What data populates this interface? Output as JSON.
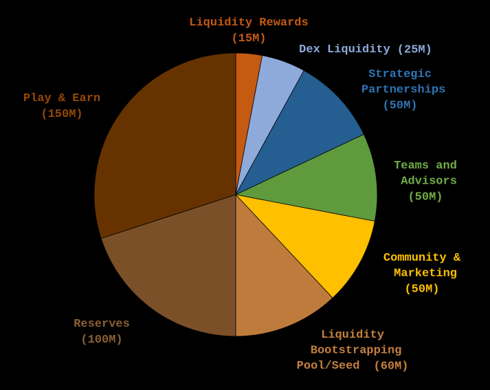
{
  "chart_data": {
    "type": "pie",
    "categories": [
      "Liquidity Rewards",
      "Dex Liquidity",
      "Strategic Partnerships",
      "Teams and Advisors",
      "Community & Marketing",
      "Liquidity Bootstrapping Pool/Seed",
      "Reserves",
      "Play & Earn"
    ],
    "values": [
      15,
      25,
      50,
      50,
      50,
      60,
      100,
      150
    ],
    "value_labels": [
      "(15M)",
      "(25M)",
      "(50M)",
      "(50M)",
      "(50M)",
      "(60M)",
      "(100M)",
      "(150M)"
    ],
    "colors": [
      "#c55a11",
      "#8eaadb",
      "#255e91",
      "#5f9a3c",
      "#ffc000",
      "#bf7b3c",
      "#7b5028",
      "#663300"
    ],
    "label_colors": [
      "#c55a11",
      "#8eaadb",
      "#2e75b6",
      "#70ad47",
      "#ffc000",
      "#c5803e",
      "#8c5f36",
      "#974806"
    ]
  }
}
